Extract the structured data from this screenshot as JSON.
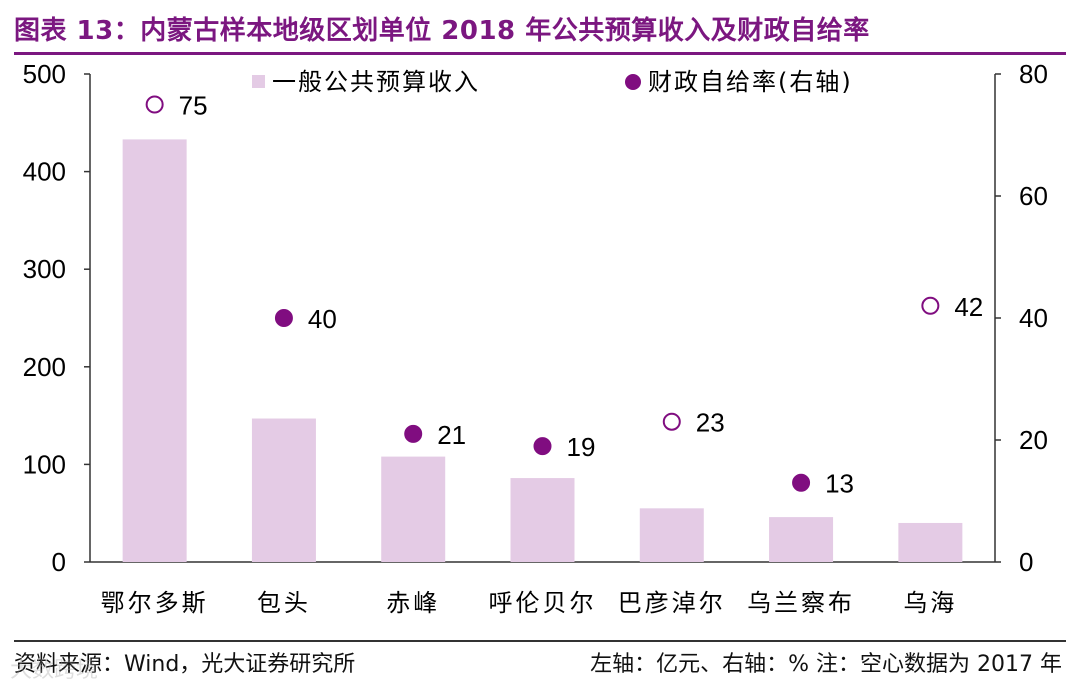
{
  "title": "图表 13：内蒙古样本地级区划单位 2018 年公共预算收入及财政自给率",
  "footer": {
    "source": "资料来源：Wind，光大证券研究所",
    "note": "左轴：亿元、右轴：%    注：空心数据为 2017 年"
  },
  "watermark": "大数跨境",
  "colors": {
    "accent": "#7b1780",
    "bar": "#e4cbe5",
    "dot": "#800d80"
  },
  "chart_data": {
    "type": "bar",
    "title": "内蒙古样本地级区划单位 2018 年公共预算收入及财政自给率",
    "categories": [
      "鄂尔多斯",
      "包头",
      "赤峰",
      "呼伦贝尔",
      "巴彦淖尔",
      "乌兰察布",
      "乌海"
    ],
    "series": [
      {
        "name": "一般公共预算收入",
        "axis": "left",
        "kind": "bar",
        "values": [
          433,
          147,
          108,
          86,
          55,
          46,
          40
        ]
      },
      {
        "name": "财政自给率(右轴)",
        "axis": "right",
        "kind": "scatter",
        "values": [
          75,
          40,
          21,
          19,
          23,
          13,
          42
        ],
        "hollow": [
          true,
          false,
          false,
          false,
          true,
          false,
          true
        ]
      }
    ],
    "left_axis": {
      "min": 0,
      "max": 500,
      "ticks": [
        0,
        100,
        200,
        300,
        400,
        500
      ]
    },
    "right_axis": {
      "min": 0,
      "max": 80,
      "ticks": [
        0,
        20,
        40,
        60,
        80
      ]
    },
    "legend": [
      "一般公共预算收入",
      "财政自给率(右轴)"
    ],
    "legend_position": "top",
    "grid": false
  }
}
